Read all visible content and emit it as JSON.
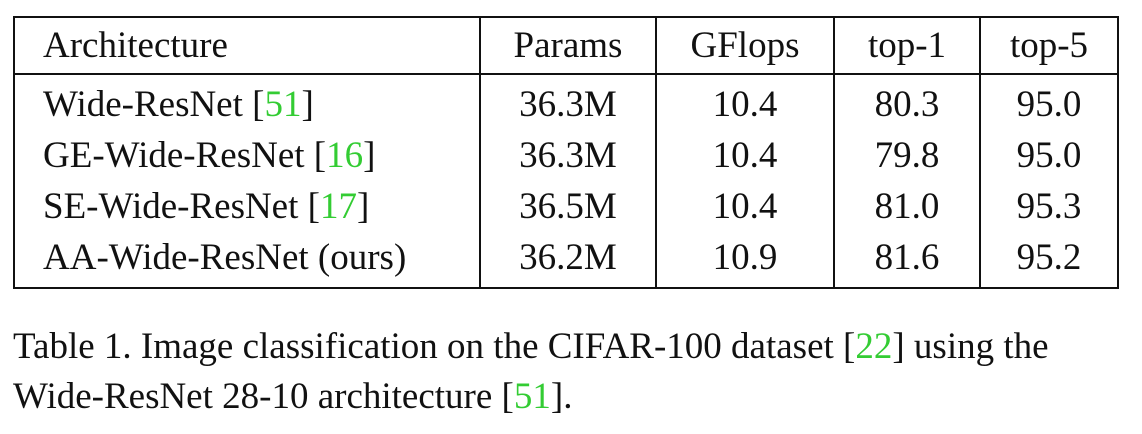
{
  "table": {
    "headers": [
      "Architecture",
      "Params",
      "GFlops",
      "top-1",
      "top-5"
    ],
    "rows": [
      {
        "name": "Wide-ResNet",
        "cite": "51",
        "params": "36.3M",
        "gflops": "10.4",
        "top1": "80.3",
        "top5": "95.0"
      },
      {
        "name": "GE-Wide-ResNet",
        "cite": "16",
        "params": "36.3M",
        "gflops": "10.4",
        "top1": "79.8",
        "top5": "95.0"
      },
      {
        "name": "SE-Wide-ResNet",
        "cite": "17",
        "params": "36.5M",
        "gflops": "10.4",
        "top1": "81.0",
        "top5": "95.3"
      },
      {
        "name": "AA-Wide-ResNet (ours)",
        "cite": "",
        "params": "36.2M",
        "gflops": "10.9",
        "top1": "81.6",
        "top5": "95.2"
      }
    ]
  },
  "caption": {
    "part1": "Table 1. Image classification on the CIFAR-100 dataset [",
    "cite1": "22",
    "part2": "] using the Wide-ResNet 28-10 architecture [",
    "cite2": "51",
    "part3": "]."
  },
  "colors": {
    "citation": "#33cc33",
    "text": "#111111",
    "background": "#ffffff"
  }
}
